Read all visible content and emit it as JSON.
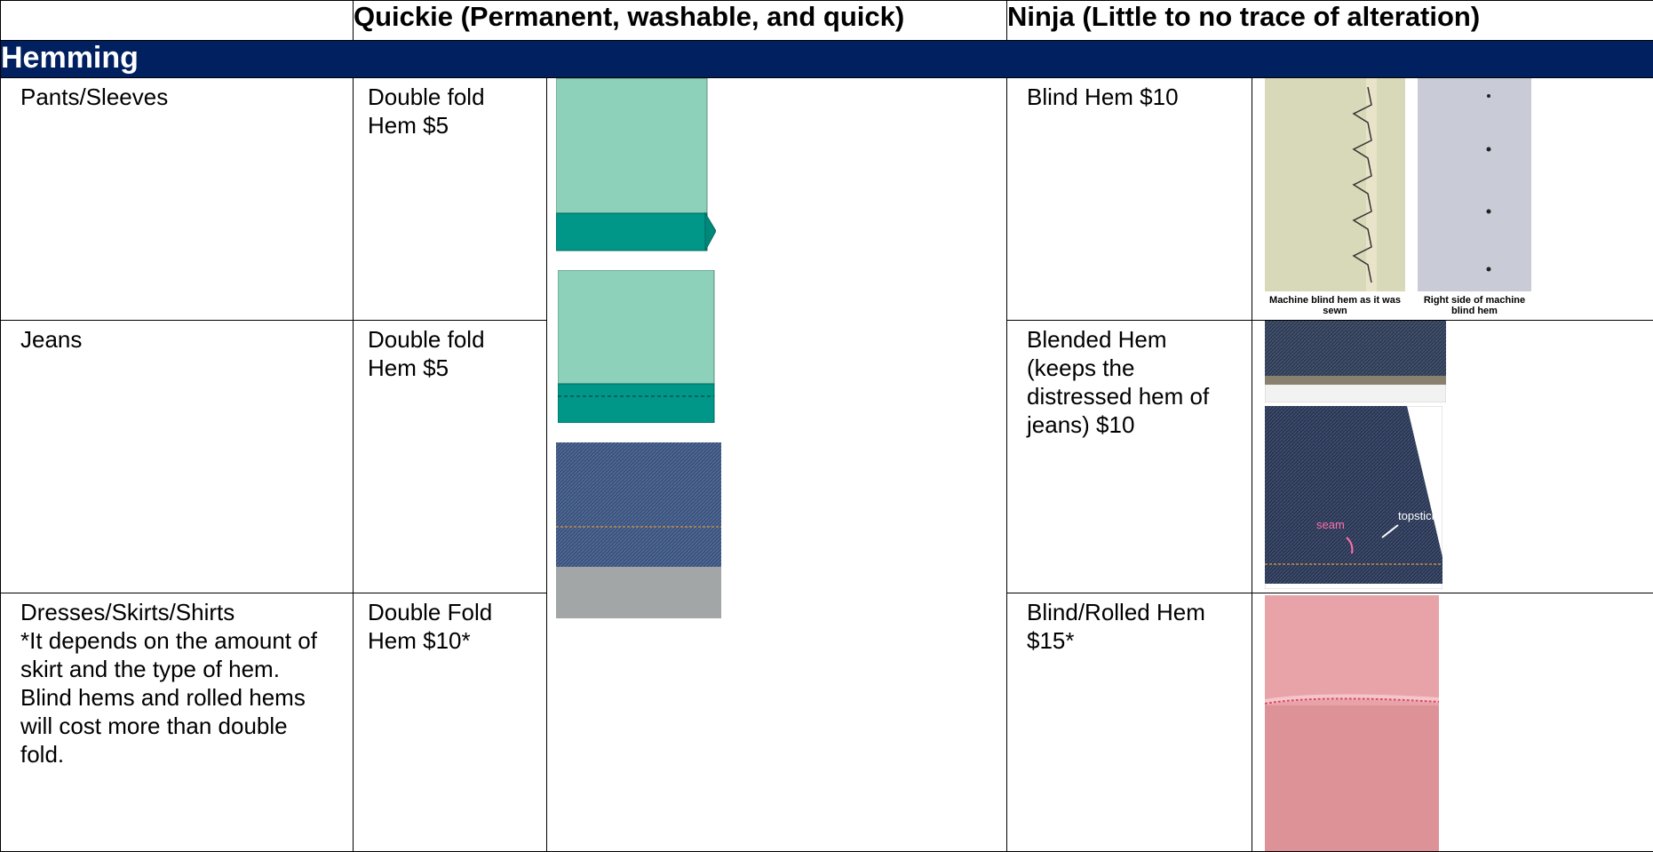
{
  "header": {
    "col_quickie": "Quickie (Permanent, washable, and quick)",
    "col_ninja": "Ninja (Little to no trace of alteration)"
  },
  "section": {
    "title": "Hemming"
  },
  "rows": [
    {
      "item": "Pants/Sleeves",
      "quickie": "Double fold Hem  $5",
      "ninja": "Blind Hem $10",
      "captions": [
        "Machine blind hem as it was sewn",
        "Right side of machine blind hem"
      ]
    },
    {
      "item": "Jeans",
      "quickie": "Double fold Hem $5",
      "ninja": "Blended Hem (keeps the distressed hem of jeans) $10",
      "photo_labels": [
        "seam",
        "topstich"
      ]
    },
    {
      "item": "Dresses/Skirts/Shirts",
      "item_note": "*It depends on the amount of skirt and the type of hem.  Blind hems and rolled hems will cost more than double fold.",
      "quickie": "Double Fold Hem $10*",
      "ninja": "Blind/Rolled Hem $15*"
    }
  ],
  "colors": {
    "band": "#002060",
    "teal_light": "#8ED1BA",
    "teal_dark": "#009688",
    "denim": "#3b4e6e",
    "pink_label": "#ff6fa8"
  }
}
